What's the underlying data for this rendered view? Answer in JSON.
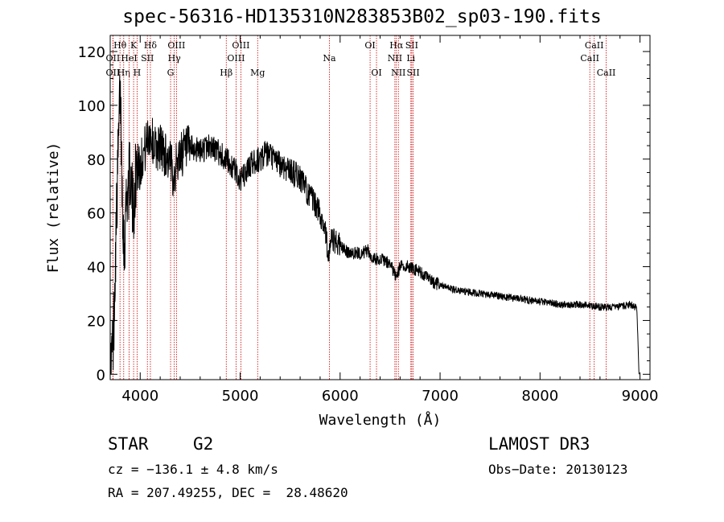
{
  "chart_data": {
    "type": "line",
    "title": "spec-56316-HD135310N283853B02_sp03-190.fits",
    "xlabel": "Wavelength (Å)",
    "ylabel": "Flux (relative)",
    "xlim": [
      3700,
      9100
    ],
    "ylim": [
      -2,
      126
    ],
    "xticks": [
      4000,
      5000,
      6000,
      7000,
      8000,
      9000
    ],
    "yticks": [
      0,
      20,
      40,
      60,
      80,
      100,
      120
    ],
    "line_color": "#000000",
    "marker_color": "#cc0000",
    "series": [
      {
        "name": "spectrum",
        "x": [
          3700,
          3730,
          3760,
          3790,
          3800,
          3810,
          3820,
          3840,
          3860,
          3880,
          3900,
          3930,
          3950,
          3970,
          4000,
          4030,
          4060,
          4080,
          4100,
          4120,
          4150,
          4200,
          4250,
          4300,
          4330,
          4350,
          4400,
          4450,
          4500,
          4600,
          4700,
          4800,
          4850,
          4900,
          4950,
          5000,
          5050,
          5100,
          5150,
          5200,
          5250,
          5300,
          5400,
          5500,
          5600,
          5700,
          5800,
          5850,
          5890,
          5900,
          5950,
          6000,
          6050,
          6100,
          6200,
          6280,
          6300,
          6350,
          6400,
          6450,
          6500,
          6560,
          6600,
          6650,
          6700,
          6800,
          6900,
          7000,
          7200,
          7400,
          7600,
          7800,
          8000,
          8200,
          8400,
          8600,
          8800,
          8900,
          8950,
          8970,
          8990
        ],
        "y": [
          0,
          12,
          55,
          95,
          108,
          90,
          70,
          45,
          65,
          70,
          75,
          60,
          72,
          80,
          78,
          82,
          85,
          88,
          90,
          87,
          84,
          85,
          82,
          78,
          75,
          76,
          82,
          83,
          84,
          83,
          85,
          82,
          80,
          78,
          76,
          72,
          74,
          78,
          79,
          80,
          82,
          81,
          78,
          76,
          73,
          66,
          60,
          54,
          42,
          50,
          49,
          48,
          46,
          45,
          45,
          46,
          44,
          43,
          43,
          42,
          41,
          36,
          40,
          40,
          40,
          38,
          35,
          33,
          31,
          30,
          29,
          28,
          27,
          26,
          26,
          25,
          25,
          26,
          25,
          24,
          0
        ]
      }
    ],
    "lines": [
      {
        "label": "Hθ",
        "wl": 3798,
        "row": 0
      },
      {
        "label": "OII",
        "wl": 3727,
        "row": 1
      },
      {
        "label": "OII",
        "wl": 3727,
        "row": 2
      },
      {
        "label": "Hη",
        "wl": 3835,
        "row": 2
      },
      {
        "label": "HeI",
        "wl": 3889,
        "row": 1
      },
      {
        "label": "K",
        "wl": 3934,
        "row": 0
      },
      {
        "label": "H",
        "wl": 3969,
        "row": 2
      },
      {
        "label": "SII",
        "wl": 4072,
        "row": 1
      },
      {
        "label": "Hδ",
        "wl": 4102,
        "row": 0
      },
      {
        "label": "OIII",
        "wl": 4363,
        "row": 0
      },
      {
        "label": "Hγ",
        "wl": 4341,
        "row": 1
      },
      {
        "label": "G",
        "wl": 4304,
        "row": 2
      },
      {
        "label": "Hβ",
        "wl": 4861,
        "row": 2
      },
      {
        "label": "OIII",
        "wl": 5007,
        "row": 0
      },
      {
        "label": "OIII",
        "wl": 4959,
        "row": 1
      },
      {
        "label": "Mg",
        "wl": 5175,
        "row": 2
      },
      {
        "label": "Na",
        "wl": 5893,
        "row": 1
      },
      {
        "label": "OI",
        "wl": 6300,
        "row": 0
      },
      {
        "label": "OI",
        "wl": 6364,
        "row": 2
      },
      {
        "label": "Hα",
        "wl": 6563,
        "row": 0
      },
      {
        "label": "NII",
        "wl": 6548,
        "row": 1
      },
      {
        "label": "NII",
        "wl": 6583,
        "row": 2
      },
      {
        "label": "SII",
        "wl": 6717,
        "row": 0
      },
      {
        "label": "Li",
        "wl": 6708,
        "row": 1
      },
      {
        "label": "SII",
        "wl": 6731,
        "row": 2
      },
      {
        "label": "CaII",
        "wl": 8542,
        "row": 0
      },
      {
        "label": "CaII",
        "wl": 8498,
        "row": 1
      },
      {
        "label": "CaII",
        "wl": 8662,
        "row": 2
      }
    ]
  },
  "info": {
    "class_label": "STAR",
    "subclass": "G2",
    "survey": "LAMOST DR3",
    "cz": "cz = −136.1 ± 4.8 km/s",
    "obs_date": "Obs−Date: 20130123",
    "radec": "RA = 207.49255, DEC =  28.48620"
  }
}
